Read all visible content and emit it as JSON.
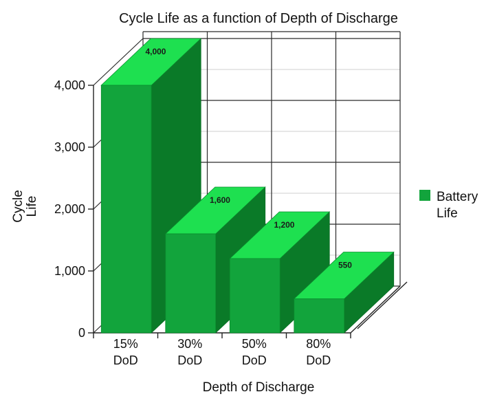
{
  "chart_data": {
    "type": "bar",
    "title": "Cycle Life as a function of Depth of Discharge",
    "xlabel": "Depth of Discharge",
    "ylabel": [
      "Cycle",
      "Life"
    ],
    "categories": [
      [
        "15%",
        "DoD"
      ],
      [
        "30%",
        "DoD"
      ],
      [
        "50%",
        "DoD"
      ],
      [
        "80%",
        "DoD"
      ]
    ],
    "series": [
      {
        "name": "Battery Life",
        "legend_lines": [
          "Battery",
          "Life"
        ],
        "values": [
          4000,
          1600,
          1200,
          550
        ],
        "value_labels": [
          "4,000",
          "1,600",
          "1,200",
          "550"
        ],
        "color": "#12a43c"
      }
    ],
    "yticks": [
      {
        "value": 0,
        "label": "0"
      },
      {
        "value": 1000,
        "label": "1,000"
      },
      {
        "value": 2000,
        "label": "2,000"
      },
      {
        "value": 3000,
        "label": "3,000"
      },
      {
        "value": 4000,
        "label": "4,000"
      }
    ],
    "ylim": [
      0,
      4000
    ],
    "grid": true,
    "three_d": true,
    "legend_position": "right",
    "colors": {
      "front": "#12a43c",
      "top": "#1ee050",
      "side": "#0a7a28"
    }
  }
}
